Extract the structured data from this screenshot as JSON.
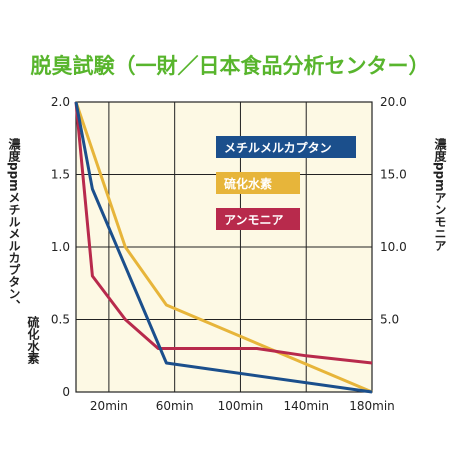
{
  "title": "脱臭試験（一財／日本食品分析センター）",
  "chart_data": {
    "type": "line",
    "title": "脱臭試験（一財／日本食品分析センター）",
    "xlabel": "",
    "y_left_label": [
      "濃度",
      "ppm",
      "メチルメルカプタン、",
      "硫化水素"
    ],
    "y_right_label": [
      "濃度",
      "ppm",
      "アンモニア"
    ],
    "x_ticks": [
      "20min",
      "60min",
      "100min",
      "140min",
      "180min"
    ],
    "x_tick_values": [
      20,
      60,
      100,
      140,
      180
    ],
    "xlim": [
      0,
      180
    ],
    "ylim_left": [
      0,
      2.0
    ],
    "y_left_ticks": [
      "0",
      "0.5",
      "1.0",
      "1.5",
      "2.0"
    ],
    "ylim_right": [
      0,
      20.0
    ],
    "y_right_ticks": [
      "5.0",
      "10.0",
      "15.0",
      "20.0"
    ],
    "grid": true,
    "legend_position": "top-right",
    "colors": {
      "background": "#fdf9e4",
      "grid": "#222222",
      "methyl": "#1b4f8c",
      "h2s": "#e7b53a",
      "nh3": "#b82a4c",
      "title": "#58b52d"
    },
    "series": [
      {
        "name": "メチルメルカプタン",
        "axis": "left",
        "x": [
          0,
          10,
          55,
          180
        ],
        "y": [
          2.0,
          1.4,
          0.2,
          0.0
        ]
      },
      {
        "name": "硫化水素",
        "axis": "left",
        "x": [
          0,
          30,
          55,
          180
        ],
        "y": [
          2.0,
          1.0,
          0.6,
          0.0
        ]
      },
      {
        "name": "アンモニア",
        "axis": "right",
        "x": [
          0,
          10,
          30,
          50,
          80,
          110,
          140,
          180
        ],
        "y": [
          20.0,
          8.0,
          5.0,
          3.0,
          3.0,
          3.0,
          2.5,
          2.0
        ]
      }
    ]
  }
}
